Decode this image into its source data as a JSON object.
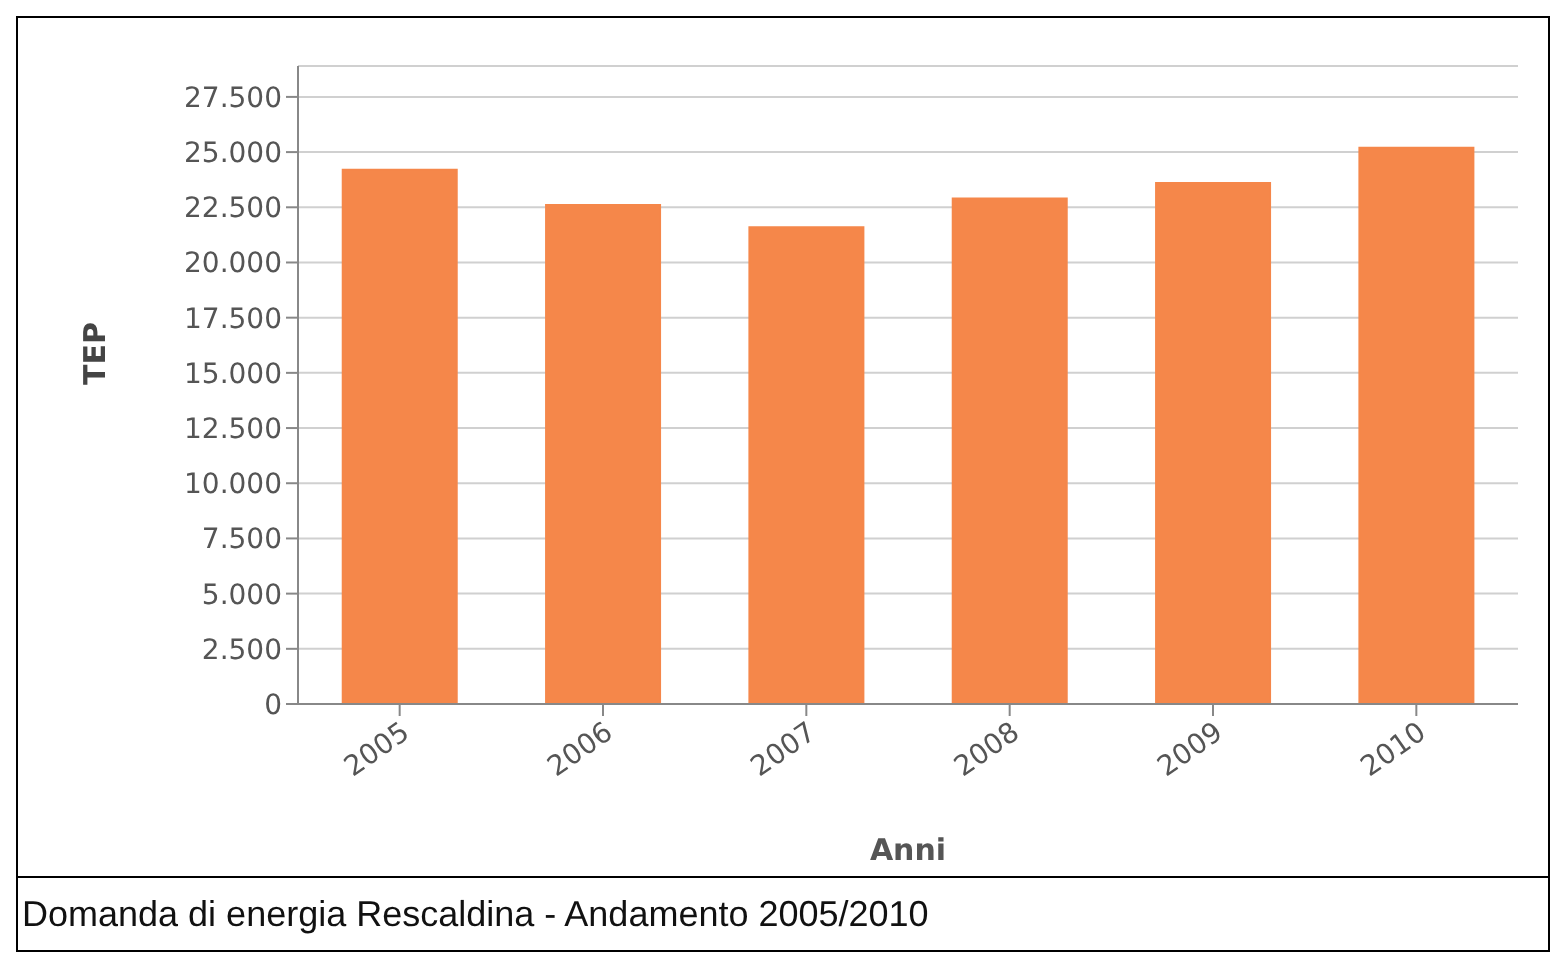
{
  "chart_data": {
    "type": "bar",
    "xlabel": "Anni",
    "ylabel": "TEP",
    "categories": [
      "2005",
      "2006",
      "2007",
      "2008",
      "2009",
      "2010"
    ],
    "values": [
      24200,
      22600,
      21600,
      22900,
      23600,
      25200
    ],
    "color": "#f5874a",
    "ylim": [
      0,
      28900
    ],
    "yticks": [
      {
        "value": 0,
        "label": "0"
      },
      {
        "value": 2500,
        "label": "2.500"
      },
      {
        "value": 5000,
        "label": "5.000"
      },
      {
        "value": 7500,
        "label": "7.500"
      },
      {
        "value": 10000,
        "label": "10.000"
      },
      {
        "value": 12500,
        "label": "12.500"
      },
      {
        "value": 15000,
        "label": "15.000"
      },
      {
        "value": 17500,
        "label": "17.500"
      },
      {
        "value": 20000,
        "label": "20.000"
      },
      {
        "value": 22500,
        "label": "22.500"
      },
      {
        "value": 25000,
        "label": "25.000"
      },
      {
        "value": 27500,
        "label": "27.500"
      }
    ],
    "grid": "y",
    "legend": false,
    "annotations": [
      "Domanda di energia Rescaldina - Andamento 2005/2010"
    ]
  }
}
